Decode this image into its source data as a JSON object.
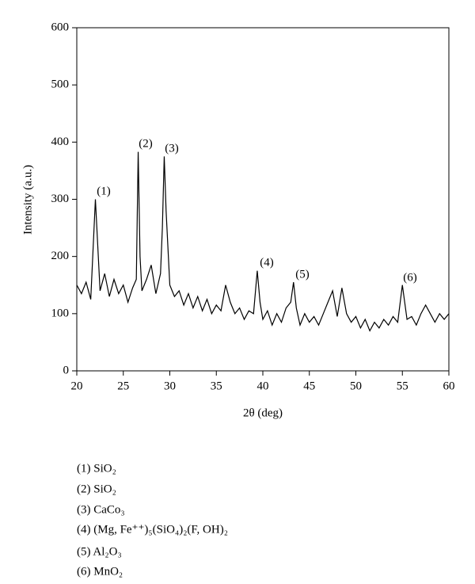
{
  "chart_data": {
    "type": "line",
    "xlabel": "2θ (deg)",
    "ylabel": "Intensity (a.u.)",
    "x": [
      20,
      20.5,
      21,
      21.5,
      22,
      22.5,
      23,
      23.5,
      24,
      24.5,
      25,
      25.5,
      26,
      26.4,
      26.6,
      26.8,
      27,
      27.5,
      28,
      28.5,
      29,
      29.2,
      29.4,
      29.6,
      30,
      30.5,
      31,
      31.5,
      32,
      32.5,
      33,
      33.5,
      34,
      34.5,
      35,
      35.5,
      36,
      36.5,
      37,
      37.5,
      38,
      38.5,
      39,
      39.4,
      39.7,
      40,
      40.5,
      41,
      41.5,
      42,
      42.5,
      43,
      43.3,
      43.6,
      44,
      44.5,
      45,
      45.5,
      46,
      46.5,
      47,
      47.5,
      48,
      48.5,
      49,
      49.5,
      50,
      50.5,
      51,
      51.5,
      52,
      52.5,
      53,
      53.5,
      54,
      54.5,
      55,
      55.5,
      56,
      56.5,
      57,
      57.5,
      58,
      58.5,
      59,
      59.5,
      60
    ],
    "series": [
      {
        "color": "#000000",
        "values": [
          150,
          135,
          155,
          125,
          300,
          140,
          170,
          130,
          160,
          135,
          150,
          120,
          145,
          160,
          383,
          200,
          140,
          160,
          185,
          135,
          170,
          250,
          375,
          280,
          150,
          130,
          140,
          115,
          135,
          110,
          130,
          105,
          125,
          100,
          115,
          105,
          150,
          120,
          100,
          110,
          90,
          105,
          100,
          175,
          120,
          90,
          105,
          80,
          100,
          85,
          110,
          120,
          155,
          110,
          80,
          100,
          85,
          95,
          80,
          100,
          120,
          140,
          95,
          145,
          100,
          85,
          95,
          75,
          90,
          70,
          85,
          75,
          90,
          80,
          95,
          85,
          150,
          90,
          95,
          80,
          100,
          115,
          100,
          85,
          100,
          90,
          100
        ]
      }
    ],
    "xlim": [
      20,
      60
    ],
    "xticks": [
      20,
      25,
      30,
      35,
      40,
      45,
      50,
      55,
      60
    ],
    "ylim": [
      0,
      600
    ],
    "yticks": [
      0,
      100,
      200,
      300,
      400,
      500,
      600
    ],
    "annotations": [
      "(1)",
      "(2)",
      "(3)",
      "(4)",
      "(5)",
      "(6)"
    ],
    "notes": [
      "(1) SiO₂",
      "(2) SiO₂",
      "(3) CaCo₃",
      "(4) (Mg, Fe⁺⁺)₅(SiO₄)₂(F, OH)₂",
      "(5) Al₂O₃",
      "(6) MnO₂"
    ]
  }
}
